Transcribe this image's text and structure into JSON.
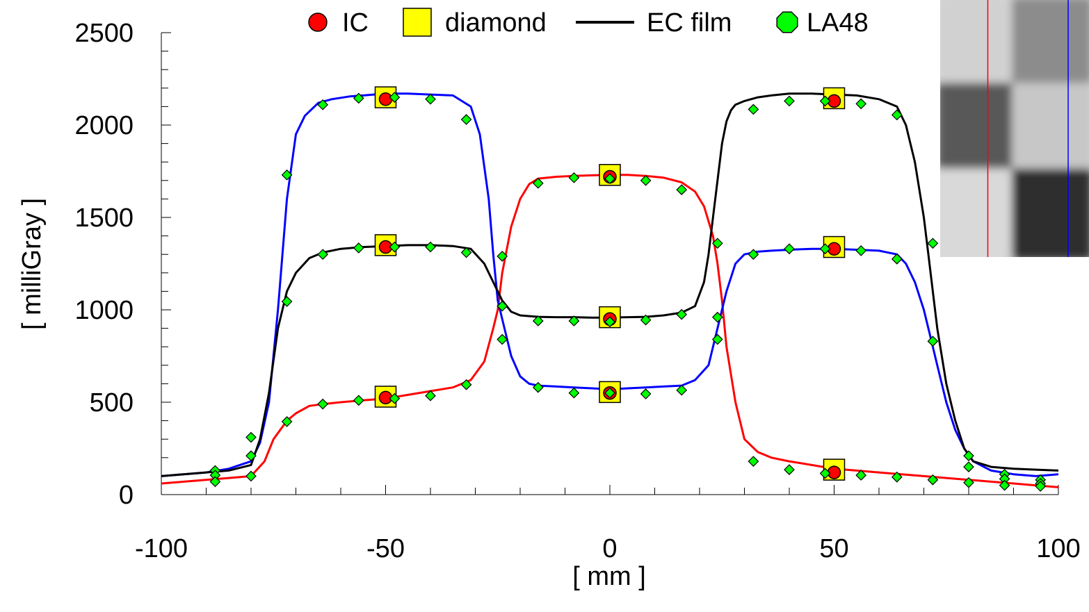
{
  "chart_data": {
    "type": "line",
    "title": "",
    "xlabel": "[ mm ]",
    "ylabel": "[ milliGray ]",
    "xlim": [
      -100,
      100
    ],
    "ylim": [
      0,
      2500
    ],
    "xticks": [
      -100,
      -50,
      0,
      50,
      100
    ],
    "yticks": [
      0,
      500,
      1000,
      1500,
      2000,
      2500
    ],
    "x_minor_step": 10,
    "y_minor_step": 100,
    "grid": false,
    "legend_position": "top-center",
    "legend": [
      {
        "label": "IC",
        "marker": "circle",
        "color": "#ff0000"
      },
      {
        "label": "diamond",
        "marker": "square",
        "color": "#ffff00"
      },
      {
        "label": "EC film",
        "marker": "line",
        "color": "#000000"
      },
      {
        "label": "LA48",
        "marker": "octagon",
        "color": "#00ff00"
      }
    ],
    "series": [
      {
        "color": "#ff0000",
        "kind": "film-profile",
        "x": [
          -100,
          -95,
          -90,
          -85,
          -80,
          -77,
          -75,
          -72,
          -70,
          -67,
          -64,
          -60,
          -55,
          -50,
          -45,
          -40,
          -35,
          -31,
          -28,
          -26,
          -25,
          -24,
          -22,
          -20,
          -18,
          -16,
          -12,
          -8,
          -4,
          0,
          4,
          8,
          12,
          16,
          19,
          21,
          23,
          24,
          25,
          26,
          28,
          30,
          33,
          36,
          40,
          45,
          50,
          55,
          60,
          65,
          70,
          75,
          80,
          85,
          90,
          95,
          100
        ],
        "y": [
          60,
          70,
          80,
          90,
          100,
          180,
          300,
          400,
          440,
          480,
          490,
          500,
          510,
          520,
          540,
          560,
          580,
          620,
          720,
          900,
          1000,
          1200,
          1450,
          1600,
          1680,
          1710,
          1720,
          1725,
          1728,
          1730,
          1730,
          1725,
          1715,
          1690,
          1640,
          1560,
          1400,
          1250,
          1050,
          800,
          500,
          300,
          230,
          200,
          180,
          160,
          140,
          130,
          120,
          110,
          100,
          90,
          80,
          70,
          60,
          50,
          40
        ]
      },
      {
        "color": "#0000ff",
        "kind": "film-profile",
        "x": [
          -100,
          -95,
          -90,
          -85,
          -80,
          -78,
          -76,
          -74,
          -72,
          -70,
          -68,
          -65,
          -62,
          -58,
          -55,
          -50,
          -45,
          -40,
          -35,
          -31,
          -29,
          -27,
          -26,
          -25,
          -24,
          -22,
          -20,
          -18,
          -16,
          -12,
          -8,
          -4,
          0,
          4,
          8,
          12,
          16,
          19,
          22,
          24,
          26,
          28,
          30,
          33,
          36,
          40,
          45,
          50,
          55,
          60,
          64,
          66,
          68,
          70,
          71,
          72,
          73,
          75,
          77,
          79,
          81,
          85,
          90,
          95,
          100
        ],
        "y": [
          100,
          110,
          120,
          140,
          180,
          280,
          500,
          1000,
          1600,
          1950,
          2050,
          2120,
          2140,
          2155,
          2160,
          2170,
          2170,
          2165,
          2160,
          2100,
          1950,
          1600,
          1300,
          1050,
          950,
          750,
          640,
          600,
          590,
          585,
          580,
          575,
          570,
          575,
          580,
          585,
          590,
          620,
          700,
          900,
          1100,
          1250,
          1300,
          1315,
          1320,
          1325,
          1330,
          1330,
          1325,
          1320,
          1300,
          1250,
          1150,
          1000,
          900,
          800,
          700,
          500,
          350,
          250,
          180,
          130,
          110,
          100,
          110
        ]
      },
      {
        "color": "#000000",
        "kind": "film-profile",
        "x": [
          -100,
          -95,
          -90,
          -85,
          -80,
          -78,
          -76,
          -74,
          -72,
          -70,
          -67,
          -64,
          -60,
          -55,
          -50,
          -45,
          -40,
          -35,
          -31,
          -28,
          -26,
          -24,
          -22,
          -20,
          -16,
          -12,
          -8,
          -4,
          0,
          4,
          8,
          12,
          16,
          19,
          21,
          22,
          23,
          24,
          25,
          26,
          27,
          28,
          30,
          33,
          36,
          40,
          45,
          50,
          55,
          60,
          64,
          66,
          68,
          70,
          71,
          72,
          73,
          75,
          77,
          79,
          81,
          85,
          90,
          95,
          100
        ],
        "y": [
          100,
          110,
          120,
          130,
          160,
          300,
          550,
          900,
          1100,
          1200,
          1280,
          1310,
          1330,
          1340,
          1345,
          1350,
          1350,
          1345,
          1330,
          1250,
          1150,
          1050,
          990,
          970,
          962,
          960,
          960,
          958,
          958,
          960,
          962,
          970,
          985,
          1020,
          1150,
          1300,
          1500,
          1700,
          1900,
          2020,
          2080,
          2110,
          2130,
          2150,
          2160,
          2170,
          2170,
          2165,
          2160,
          2140,
          2100,
          2000,
          1800,
          1500,
          1300,
          1100,
          900,
          600,
          400,
          250,
          180,
          150,
          140,
          135,
          130
        ]
      }
    ],
    "point_series": [
      {
        "name": "IC",
        "marker": "circle",
        "color": "#ff0000",
        "x": [
          -50,
          -50,
          -50,
          0,
          0,
          0,
          50,
          50,
          50
        ],
        "y": [
          2140,
          1340,
          525,
          1720,
          950,
          550,
          2130,
          1330,
          120
        ]
      },
      {
        "name": "diamond",
        "marker": "square",
        "color": "#ffff00",
        "x": [
          -50,
          -50,
          -50,
          0,
          0,
          0,
          50,
          50,
          50
        ],
        "y": [
          2150,
          1350,
          530,
          1730,
          960,
          555,
          2145,
          1340,
          135
        ]
      },
      {
        "name": "LA48",
        "marker": "diamond",
        "color": "#00ff00",
        "x": [
          -88,
          -80,
          -72,
          -64,
          -56,
          -48,
          -40,
          -32,
          -24,
          -16,
          -8,
          0,
          8,
          16,
          24,
          32,
          40,
          48,
          56,
          64,
          72,
          80,
          88,
          96,
          -88,
          -80,
          -72,
          -64,
          -56,
          -48,
          -40,
          -32,
          -24,
          -16,
          -8,
          0,
          8,
          16,
          24,
          32,
          40,
          48,
          56,
          64,
          72,
          80,
          88,
          96,
          -88,
          -80,
          -72,
          -64,
          -56,
          -48,
          -40,
          -32,
          -24,
          -16,
          -8,
          0,
          8,
          16,
          24,
          32,
          40,
          48,
          56,
          64,
          72,
          80,
          88,
          96
        ],
        "y": [
          130,
          310,
          1730,
          2110,
          2145,
          2150,
          2140,
          2030,
          1290,
          580,
          550,
          550,
          545,
          565,
          840,
          1300,
          1330,
          2130,
          2115,
          2055,
          1360,
          210,
          110,
          80,
          105,
          210,
          1045,
          1300,
          1335,
          1340,
          1340,
          1310,
          1020,
          940,
          940,
          935,
          945,
          975,
          960,
          2085,
          2130,
          1330,
          1320,
          1275,
          830,
          150,
          85,
          60,
          70,
          100,
          395,
          490,
          510,
          520,
          535,
          595,
          840,
          1685,
          1715,
          1710,
          1700,
          1650,
          1360,
          180,
          135,
          115,
          105,
          95,
          80,
          65,
          50,
          45
        ]
      }
    ],
    "inset": {
      "type": "heatmap-image",
      "columns": 2,
      "rows": 3,
      "gray_levels": [
        [
          0.82,
          0.55
        ],
        [
          0.35,
          0.78
        ],
        [
          0.85,
          0.18
        ]
      ],
      "marker_lines": [
        {
          "color": "#ff0000",
          "position": 0.32
        },
        {
          "color": "#0000ff",
          "position": 0.86
        }
      ]
    }
  }
}
